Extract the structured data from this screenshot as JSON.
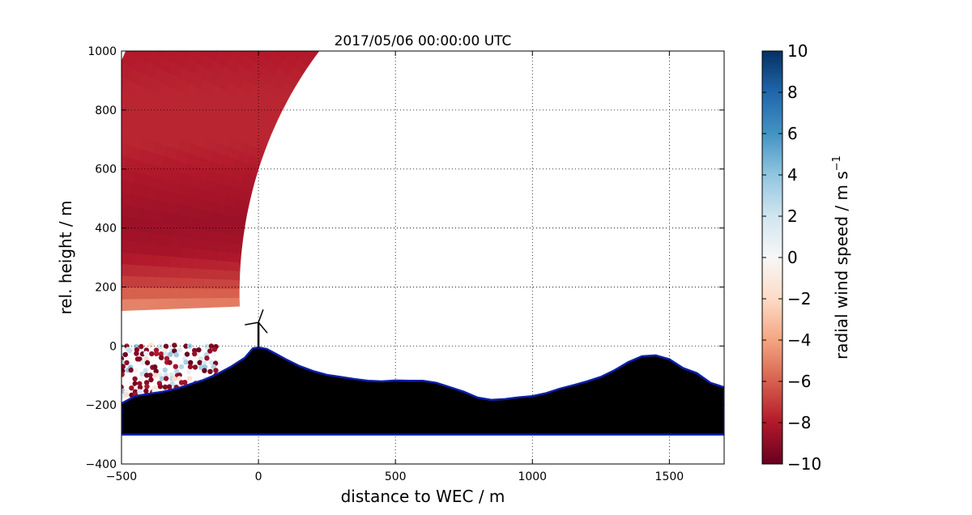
{
  "chart_data": {
    "type": "heatmap",
    "title": "2017/05/06 00:00:00 UTC",
    "xlabel": "distance to WEC / m",
    "ylabel": "rel. height / m",
    "xlim": [
      -500,
      1700
    ],
    "ylim": [
      -400,
      1000
    ],
    "x_ticks": [
      "−500",
      "0",
      "500",
      "1000",
      "1500"
    ],
    "y_ticks": [
      "−400",
      "−200",
      "0",
      "200",
      "400",
      "600",
      "800",
      "1000"
    ],
    "grid": true,
    "colorbar": {
      "label_main": "radial wind speed / m s",
      "label_sup": "−1",
      "range": [
        -10,
        10
      ],
      "ticks": [
        "−10",
        "−8",
        "−6",
        "−4",
        "−2",
        "0",
        "2",
        "4",
        "6",
        "8",
        "10"
      ],
      "colormap": "RdBu",
      "colors": [
        "#67001f",
        "#b2182b",
        "#d6604d",
        "#f4a582",
        "#fddbc7",
        "#f7f7f7",
        "#d1e5f0",
        "#92c5de",
        "#4393c3",
        "#2166ac",
        "#053061"
      ]
    },
    "scan": {
      "origin": [
        1230,
        180
      ],
      "range_m": [
        1300,
        1900
      ],
      "elevation_deg": [
        -2,
        90
      ],
      "upper_limit_elevation_deg": 52.5
    },
    "wind_profile": [
      {
        "height": -60,
        "speed": 1.0
      },
      {
        "height": 0,
        "speed": 0.0
      },
      {
        "height": 40,
        "speed": -1.5
      },
      {
        "height": 80,
        "speed": -3.0
      },
      {
        "height": 140,
        "speed": -5.0
      },
      {
        "height": 220,
        "speed": -7.0
      },
      {
        "height": 320,
        "speed": -8.3
      },
      {
        "height": 420,
        "speed": -8.6
      },
      {
        "height": 550,
        "speed": -8.2
      },
      {
        "height": 700,
        "speed": -7.6
      },
      {
        "height": 850,
        "speed": -7.6
      },
      {
        "height": 1000,
        "speed": -8.0
      }
    ],
    "terrain": {
      "x": [
        -500,
        -450,
        -400,
        -350,
        -300,
        -250,
        -200,
        -150,
        -100,
        -50,
        -20,
        0,
        30,
        60,
        100,
        150,
        200,
        250,
        300,
        350,
        400,
        450,
        500,
        550,
        600,
        650,
        700,
        750,
        800,
        850,
        900,
        950,
        1000,
        1050,
        1100,
        1150,
        1200,
        1250,
        1300,
        1350,
        1400,
        1450,
        1500,
        1550,
        1600,
        1650,
        1700
      ],
      "y": [
        -195,
        -170,
        -162,
        -155,
        -145,
        -130,
        -115,
        -95,
        -70,
        -40,
        -8,
        -5,
        -10,
        -25,
        -45,
        -68,
        -85,
        -98,
        -105,
        -112,
        -118,
        -120,
        -117,
        -118,
        -118,
        -125,
        -140,
        -155,
        -175,
        -183,
        -180,
        -174,
        -170,
        -160,
        -145,
        -133,
        -120,
        -105,
        -82,
        -55,
        -35,
        -32,
        -45,
        -75,
        -92,
        -125,
        -140
      ]
    },
    "turbine": {
      "x": 0,
      "hub_height": 80
    },
    "scatter_region": {
      "x": [
        -500,
        -150
      ],
      "y": [
        -180,
        0
      ],
      "values": [
        -10,
        4
      ]
    }
  }
}
